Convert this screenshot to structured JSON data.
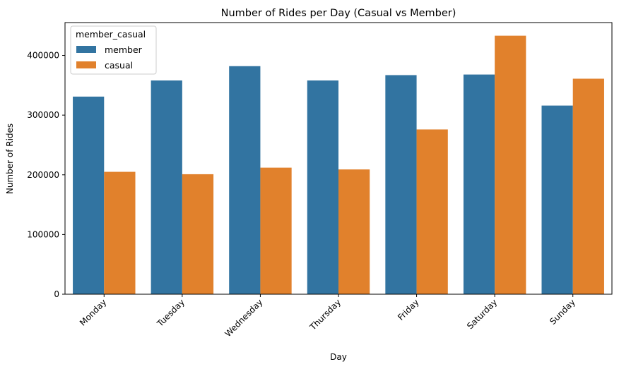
{
  "chart_data": {
    "type": "bar",
    "title": "Number of Rides per Day (Casual vs Member)",
    "xlabel": "Day",
    "ylabel": "Number of Rides",
    "categories": [
      "Monday",
      "Tuesday",
      "Wednesday",
      "Thursday",
      "Friday",
      "Saturday",
      "Sunday"
    ],
    "series": [
      {
        "name": "member",
        "color": "#3274a1",
        "values": [
          331000,
          358000,
          382000,
          358000,
          367000,
          368000,
          316000
        ]
      },
      {
        "name": "casual",
        "color": "#e1812c",
        "values": [
          205000,
          201000,
          212000,
          209000,
          276000,
          433000,
          361000
        ]
      }
    ],
    "ylim": [
      0,
      455000
    ],
    "yticks": [
      0,
      100000,
      200000,
      300000,
      400000
    ],
    "ytick_labels": [
      "0",
      "100000",
      "200000",
      "300000",
      "400000"
    ],
    "legend": {
      "title": "member_casual",
      "placement": "top-left"
    },
    "grid": false
  }
}
